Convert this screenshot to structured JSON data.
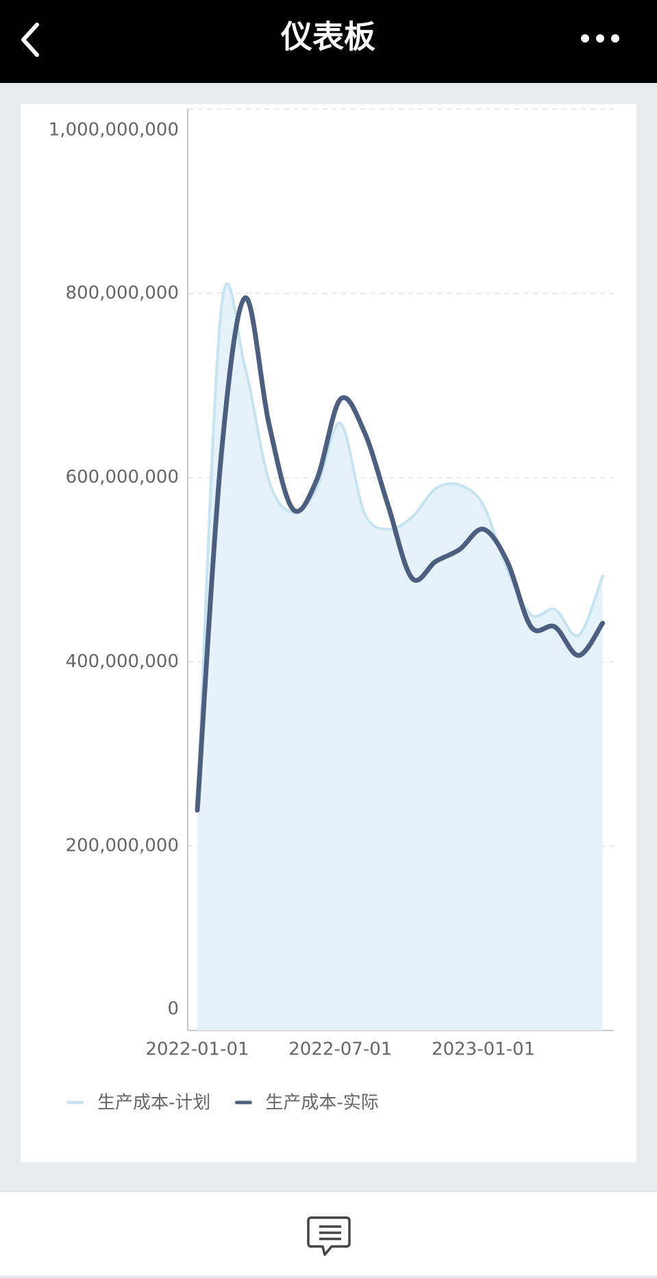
{
  "header": {
    "title": "仪表板"
  },
  "chart_data": {
    "type": "line",
    "categories": [
      "2022-01-01",
      null,
      null,
      null,
      null,
      null,
      "2022-07-01",
      null,
      null,
      null,
      null,
      null,
      "2023-01-01",
      null,
      null,
      null,
      null,
      null
    ],
    "series": [
      {
        "name": "生产成本-计划",
        "color": "#c6e3f1",
        "area": true,
        "area_color": "#e5f2f9",
        "values": [
          240000000,
          782000000,
          720000000,
          597000000,
          562000000,
          588000000,
          659000000,
          562000000,
          544000000,
          557000000,
          588000000,
          592000000,
          570000000,
          500000000,
          451000000,
          457000000,
          429000000,
          493000000
        ]
      },
      {
        "name": "生产成本-实际",
        "color": "#4d5f80",
        "area": false,
        "values": [
          239000000,
          623000000,
          795000000,
          659000000,
          566000000,
          597000000,
          685000000,
          650000000,
          570000000,
          491000000,
          509000000,
          522000000,
          544000000,
          509000000,
          438000000,
          438000000,
          407000000,
          442000000
        ]
      }
    ],
    "ylim": [
      0,
      1000000000
    ],
    "yticks": [
      0,
      {
        "value": 200000000,
        "label": "200,000,000"
      },
      {
        "value": 400000000,
        "label": "400,000,000"
      },
      {
        "value": 600000000,
        "label": "600,000,000"
      },
      {
        "value": 800000000,
        "label": "800,000,000"
      },
      {
        "value": 1000000000,
        "label": "1,000,000,000"
      }
    ],
    "grid": true,
    "smooth": true,
    "legend": "bottom-left"
  }
}
